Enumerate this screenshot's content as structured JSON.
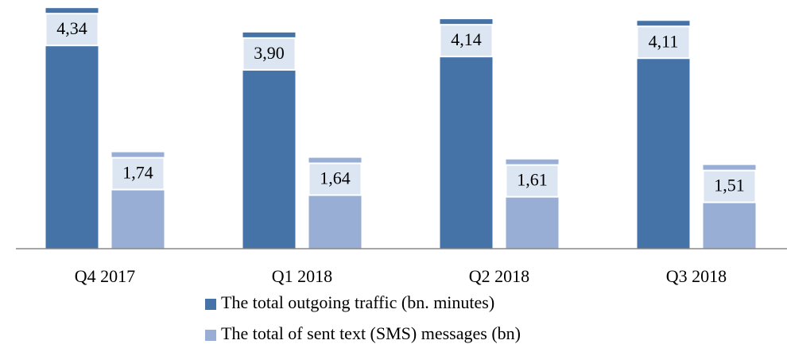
{
  "chart_data": {
    "type": "bar",
    "categories": [
      "Q4 2017",
      "Q1 2018",
      "Q2 2018",
      "Q3 2018"
    ],
    "series": [
      {
        "name": "The total outgoing traffic (bn. minutes)",
        "color": "#4573a7",
        "values": [
          4.34,
          3.9,
          4.14,
          4.11
        ],
        "value_labels": [
          "4,34",
          "3,90",
          "4,14",
          "4,11"
        ]
      },
      {
        "name": "The total of sent text (SMS) messages (bn)",
        "color": "#98aed4",
        "values": [
          1.74,
          1.64,
          1.61,
          1.51
        ],
        "value_labels": [
          "1,74",
          "1,64",
          "1,61",
          "1,51"
        ]
      }
    ],
    "ylim": [
      0,
      4.4
    ],
    "legend": "bottom"
  }
}
